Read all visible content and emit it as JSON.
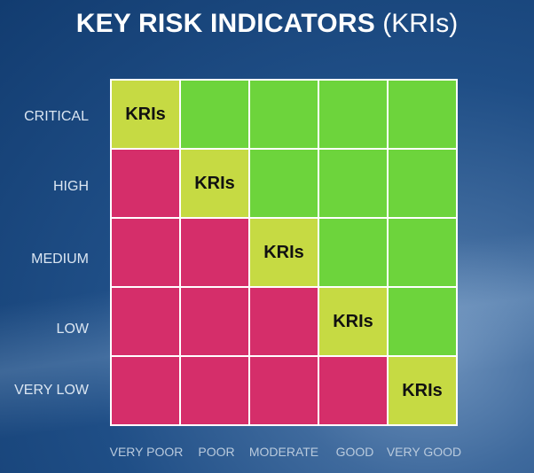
{
  "title": {
    "bold": "KEY RISK INDICATORS",
    "light": "(KRIs)"
  },
  "rows": [
    "CRITICAL",
    "HIGH",
    "MEDIUM",
    "LOW",
    "VERY LOW"
  ],
  "columns": [
    "VERY POOR",
    "POOR",
    "MODERATE",
    "GOOD",
    "VERY GOOD"
  ],
  "colors": {
    "green": "#6dd43c",
    "red": "#d52e6a",
    "yellow": "#c6da43"
  },
  "cells": [
    [
      "yellow",
      "green",
      "green",
      "green",
      "green"
    ],
    [
      "red",
      "yellow",
      "green",
      "green",
      "green"
    ],
    [
      "red",
      "red",
      "yellow",
      "green",
      "green"
    ],
    [
      "red",
      "red",
      "red",
      "yellow",
      "green"
    ],
    [
      "red",
      "red",
      "red",
      "red",
      "yellow"
    ]
  ],
  "diagonal_label": "KRIs"
}
